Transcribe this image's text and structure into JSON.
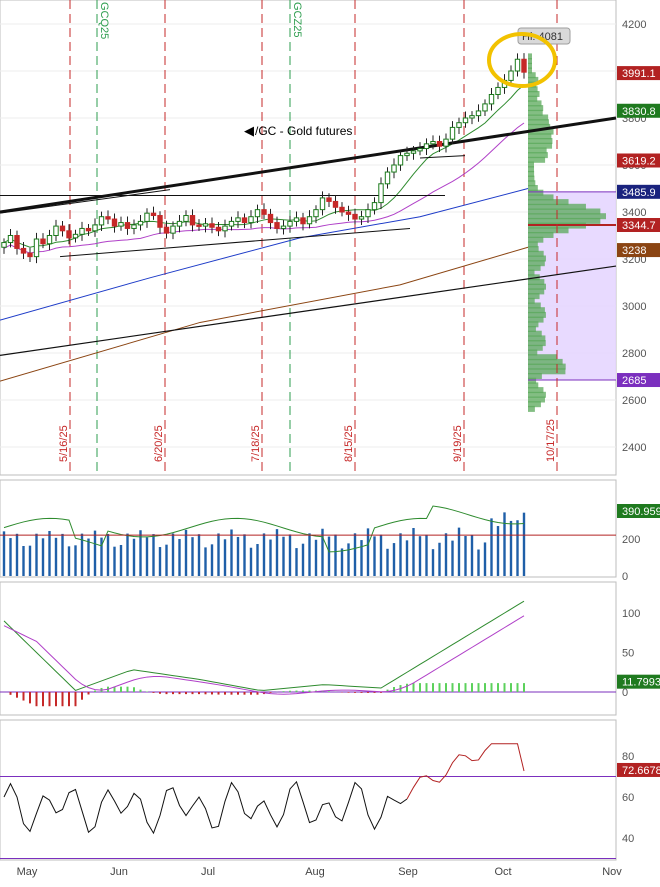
{
  "chart_data": {
    "type": "line",
    "title": "/GC - Gold futures",
    "hi_label": "Hi: 4081",
    "months": [
      "May",
      "Jun",
      "Jul",
      "Aug",
      "Sep",
      "Oct",
      "Nov"
    ],
    "event_dates": [
      "5/16/25",
      "6/20/25",
      "7/18/25",
      "8/15/25",
      "9/19/25",
      "10/17/25"
    ],
    "contract_labels": [
      "GCQ25",
      "GCZ25"
    ],
    "price_panel": {
      "ylim": [
        2300,
        4250
      ],
      "yticks": [
        2400,
        2600,
        2800,
        3000,
        3200,
        3400,
        3600,
        3800,
        4000,
        4200
      ],
      "price_tags": [
        {
          "value": "3991.1",
          "color": "#b22222"
        },
        {
          "value": "3830.8",
          "color": "#1f7a1f"
        },
        {
          "value": "3619.2",
          "color": "#b22222"
        },
        {
          "value": "3485.9",
          "color": "#1a237e"
        },
        {
          "value": "3344.7",
          "color": "#b22222"
        },
        {
          "value": "3238",
          "color": "#8b4513"
        },
        {
          "value": "2685",
          "color": "#7b2fbe"
        }
      ],
      "close": [
        3270,
        3300,
        3245,
        3225,
        3210,
        3285,
        3265,
        3300,
        3340,
        3320,
        3290,
        3305,
        3330,
        3320,
        3345,
        3380,
        3370,
        3340,
        3355,
        3330,
        3345,
        3360,
        3395,
        3385,
        3335,
        3310,
        3340,
        3360,
        3385,
        3345,
        3340,
        3350,
        3335,
        3320,
        3340,
        3360,
        3375,
        3355,
        3380,
        3410,
        3390,
        3355,
        3330,
        3340,
        3360,
        3375,
        3350,
        3380,
        3410,
        3460,
        3445,
        3420,
        3400,
        3390,
        3370,
        3380,
        3410,
        3440,
        3520,
        3570,
        3600,
        3640,
        3650,
        3660,
        3670,
        3690,
        3700,
        3680,
        3710,
        3760,
        3780,
        3800,
        3810,
        3830,
        3860,
        3900,
        3930,
        3960,
        4000,
        4050,
        3995
      ]
    },
    "volume_panel": {
      "ylim": [
        0,
        500
      ],
      "yticks": [
        0,
        200
      ],
      "last_value": "390.959",
      "ref_line": 220
    },
    "macd_panel": {
      "ylim": [
        -35,
        135
      ],
      "yticks": [
        0,
        50,
        100
      ],
      "last_value": "11.7993"
    },
    "rsi_panel": {
      "ylim": [
        28,
        92
      ],
      "yticks": [
        40,
        60,
        80
      ],
      "last_value": "72.6678",
      "ref_line": 70
    }
  }
}
